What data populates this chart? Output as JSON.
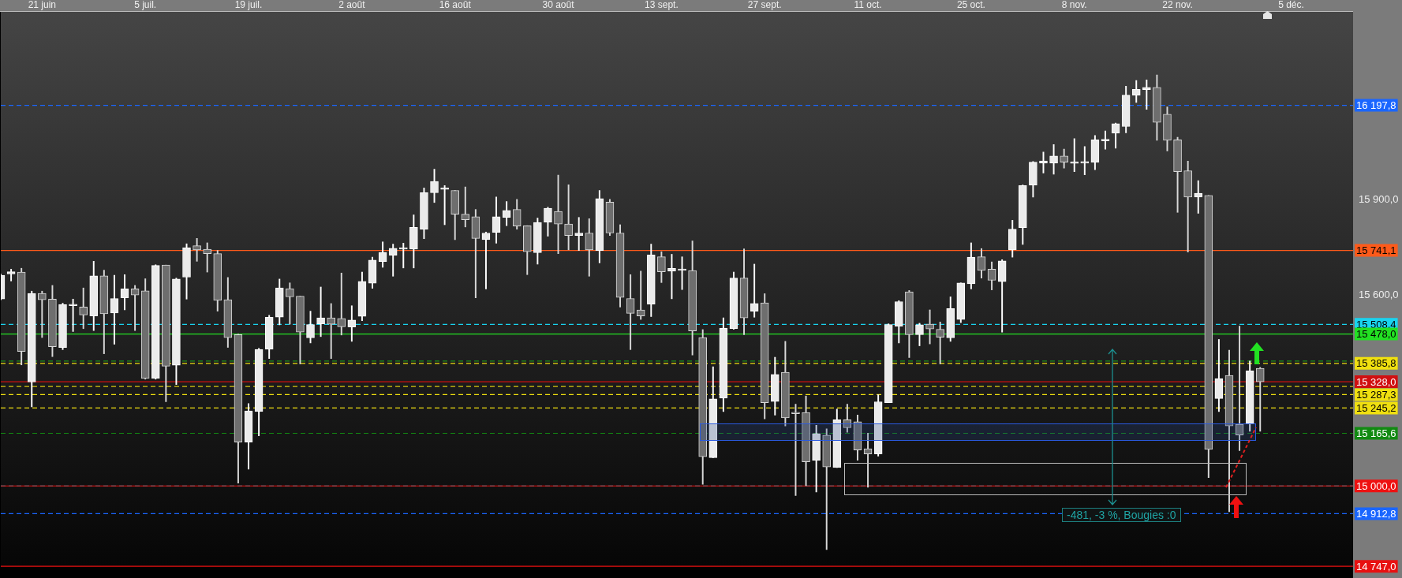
{
  "chart_data": {
    "type": "candlestick",
    "categories": [
      null,
      null,
      null,
      null,
      "21 juin",
      null,
      null,
      null,
      null,
      null,
      null,
      null,
      null,
      null,
      "5 juil.",
      null,
      null,
      null,
      null,
      null,
      null,
      null,
      null,
      null,
      "19 juil.",
      null,
      null,
      null,
      null,
      null,
      null,
      null,
      null,
      null,
      "2 août",
      null,
      null,
      null,
      null,
      null,
      null,
      null,
      null,
      null,
      "16 août",
      null,
      null,
      null,
      null,
      null,
      null,
      null,
      null,
      null,
      "30 août",
      null,
      null,
      null,
      null,
      null,
      null,
      null,
      null,
      null,
      "13 sept.",
      null,
      null,
      null,
      null,
      null,
      null,
      null,
      null,
      null,
      "27 sept.",
      null,
      null,
      null,
      null,
      null,
      null,
      null,
      null,
      null,
      "11 oct.",
      null,
      null,
      null,
      null,
      null,
      null,
      null,
      null,
      null,
      "25 oct.",
      null,
      null,
      null,
      null,
      null,
      null,
      null,
      null,
      null,
      "8 nov.",
      null,
      null,
      null,
      null,
      null,
      null,
      null,
      null,
      null,
      "22 nov.",
      null,
      null,
      null,
      null,
      null,
      null,
      null,
      null,
      null,
      null,
      "5 déc.",
      null,
      null,
      null,
      null,
      null,
      null
    ],
    "ohlc": [
      [
        15588,
        15667,
        15586,
        15663
      ],
      [
        15667,
        15682,
        15645,
        15674
      ],
      [
        15673,
        15685,
        15381,
        15423
      ],
      [
        15327,
        15613,
        15249,
        15606
      ],
      [
        15606,
        15613,
        15467,
        15586
      ],
      [
        15588,
        15631,
        15407,
        15438
      ],
      [
        15436,
        15575,
        15429,
        15571
      ],
      [
        15567,
        15588,
        15486,
        15571
      ],
      [
        15563,
        15623,
        15495,
        15538
      ],
      [
        15535,
        15707,
        15489,
        15661
      ],
      [
        15661,
        15679,
        15416,
        15542
      ],
      [
        15544,
        15663,
        15446,
        15590
      ],
      [
        15592,
        15665,
        15554,
        15620
      ],
      [
        15620,
        15631,
        15489,
        15601
      ],
      [
        15614,
        15652,
        15336,
        15338
      ],
      [
        15338,
        15696,
        15336,
        15694
      ],
      [
        15695,
        15695,
        15265,
        15377
      ],
      [
        15380,
        15654,
        15319,
        15651
      ],
      [
        15657,
        15762,
        15588,
        15750
      ],
      [
        15756,
        15779,
        15707,
        15743
      ],
      [
        15745,
        15765,
        15673,
        15731
      ],
      [
        15731,
        15741,
        15550,
        15584
      ],
      [
        15586,
        15656,
        15436,
        15467
      ],
      [
        15476,
        15478,
        15009,
        15138
      ],
      [
        15138,
        15259,
        15053,
        15236
      ],
      [
        15234,
        15433,
        15158,
        15430
      ],
      [
        15430,
        15537,
        15401,
        15531
      ],
      [
        15531,
        15651,
        15507,
        15623
      ],
      [
        15621,
        15639,
        15509,
        15595
      ],
      [
        15597,
        15597,
        15384,
        15484
      ],
      [
        15466,
        15550,
        15450,
        15508
      ],
      [
        15510,
        15626,
        15470,
        15529
      ],
      [
        15529,
        15574,
        15401,
        15509
      ],
      [
        15527,
        15670,
        15475,
        15501
      ],
      [
        15500,
        15567,
        15455,
        15522
      ],
      [
        15534,
        15673,
        15520,
        15644
      ],
      [
        15638,
        15720,
        15622,
        15711
      ],
      [
        15706,
        15768,
        15688,
        15735
      ],
      [
        15726,
        15761,
        15660,
        15748
      ],
      [
        15745,
        15764,
        15686,
        15750
      ],
      [
        15745,
        15853,
        15686,
        15814
      ],
      [
        15808,
        15938,
        15778,
        15923
      ],
      [
        15923,
        15997,
        15892,
        15958
      ],
      [
        15933,
        15945,
        15822,
        15937
      ],
      [
        15930,
        15930,
        15775,
        15855
      ],
      [
        15855,
        15941,
        15815,
        15838
      ],
      [
        15847,
        15870,
        15592,
        15779
      ],
      [
        15775,
        15799,
        15620,
        15796
      ],
      [
        15798,
        15909,
        15764,
        15847
      ],
      [
        15845,
        15895,
        15819,
        15867
      ],
      [
        15870,
        15902,
        15808,
        15818
      ],
      [
        15819,
        15819,
        15665,
        15737
      ],
      [
        15734,
        15843,
        15698,
        15829
      ],
      [
        15830,
        15877,
        15786,
        15874
      ],
      [
        15864,
        15978,
        15731,
        15824
      ],
      [
        15824,
        15948,
        15743,
        15788
      ],
      [
        15788,
        15845,
        15741,
        15796
      ],
      [
        15796,
        15841,
        15660,
        15743
      ],
      [
        15741,
        15930,
        15702,
        15904
      ],
      [
        15893,
        15902,
        15788,
        15796
      ],
      [
        15796,
        15822,
        15563,
        15593
      ],
      [
        15590,
        15665,
        15429,
        15543
      ],
      [
        15554,
        15676,
        15524,
        15535
      ],
      [
        15572,
        15761,
        15533,
        15727
      ],
      [
        15721,
        15737,
        15640,
        15674
      ],
      [
        15676,
        15729,
        15589,
        15685
      ],
      [
        15678,
        15721,
        15618,
        15681
      ],
      [
        15678,
        15771,
        15412,
        15488
      ],
      [
        15467,
        15492,
        15005,
        15092
      ],
      [
        15089,
        15375,
        15089,
        15274
      ],
      [
        15276,
        15529,
        15234,
        15497
      ],
      [
        15495,
        15673,
        15493,
        15654
      ],
      [
        15654,
        15746,
        15476,
        15529
      ],
      [
        15550,
        15698,
        15531,
        15574
      ],
      [
        15576,
        15605,
        15211,
        15262
      ],
      [
        15266,
        15405,
        15223,
        15351
      ],
      [
        15358,
        15455,
        15189,
        15214
      ],
      [
        15232,
        15257,
        14970,
        15227
      ],
      [
        15231,
        15283,
        15001,
        15076
      ],
      [
        15080,
        15191,
        14981,
        15165
      ],
      [
        15160,
        15180,
        14800,
        15060
      ],
      [
        15058,
        15242,
        15058,
        15208
      ],
      [
        15208,
        15257,
        15169,
        15183
      ],
      [
        15202,
        15223,
        15081,
        15113
      ],
      [
        15117,
        15166,
        14996,
        15101
      ],
      [
        15101,
        15287,
        15094,
        15265
      ],
      [
        15262,
        15510,
        15262,
        15508
      ],
      [
        15503,
        15583,
        15450,
        15580
      ],
      [
        15611,
        15615,
        15404,
        15476
      ],
      [
        15476,
        15512,
        15441,
        15507
      ],
      [
        15509,
        15554,
        15447,
        15494
      ],
      [
        15493,
        15516,
        15384,
        15468
      ],
      [
        15466,
        15595,
        15455,
        15558
      ],
      [
        15524,
        15639,
        15514,
        15639
      ],
      [
        15636,
        15765,
        15620,
        15720
      ],
      [
        15721,
        15747,
        15654,
        15678
      ],
      [
        15682,
        15705,
        15617,
        15647
      ],
      [
        15643,
        15712,
        15484,
        15708
      ],
      [
        15743,
        15836,
        15720,
        15808
      ],
      [
        15813,
        15947,
        15760,
        15945
      ],
      [
        15947,
        16021,
        15909,
        16019
      ],
      [
        16016,
        16051,
        15985,
        16023
      ],
      [
        16016,
        16074,
        15981,
        16038
      ],
      [
        16038,
        16060,
        16000,
        16019
      ],
      [
        16015,
        16093,
        15989,
        16018
      ],
      [
        16016,
        16068,
        15979,
        16018
      ],
      [
        16018,
        16103,
        15995,
        16089
      ],
      [
        16086,
        16117,
        16060,
        16090
      ],
      [
        16110,
        16142,
        16063,
        16140
      ],
      [
        16131,
        16258,
        16111,
        16230
      ],
      [
        16230,
        16276,
        16207,
        16248
      ],
      [
        16247,
        16278,
        16185,
        16254
      ],
      [
        16254,
        16293,
        16088,
        16144
      ],
      [
        16170,
        16193,
        16054,
        16088
      ],
      [
        16089,
        16097,
        15861,
        15989
      ],
      [
        15992,
        16022,
        15736,
        15909
      ],
      [
        15909,
        15961,
        15858,
        15921
      ],
      [
        15914,
        15914,
        15026,
        15115
      ],
      [
        15275,
        15461,
        15234,
        15338
      ],
      [
        15348,
        15427,
        14919,
        15189
      ],
      [
        15194,
        15503,
        15111,
        15160
      ],
      [
        15197,
        15393,
        15172,
        15362
      ],
      [
        15370,
        15373,
        15172,
        15328
      ],
      null,
      null,
      null,
      null,
      null,
      null,
      null,
      null,
      null
    ],
    "ylim": [
      14747,
      16492
    ],
    "yticks": [
      {
        "value": 15600,
        "label": "15 600,0"
      },
      {
        "value": 15900,
        "label": "15 900,0"
      }
    ],
    "ref_lines": [
      {
        "axis": "y",
        "value": 16197.8,
        "label": "16 197,8",
        "color": "#1a66ff",
        "line_style": "dashed"
      },
      {
        "axis": "y",
        "value": 15741.1,
        "label": "15 741,1",
        "color": "#ff5a1a",
        "line_style": "solid"
      },
      {
        "axis": "y",
        "value": 15508.4,
        "label": "15 508,4",
        "color": "#19d4f0",
        "line_style": "dashed"
      },
      {
        "axis": "y",
        "value": 15478.0,
        "label": "15 478,0",
        "color": "#22e022",
        "line_style": "solid"
      },
      {
        "axis": "y",
        "value": 15393,
        "color": "#1a8a1a",
        "line_style": "dashed"
      },
      {
        "axis": "y",
        "value": 15385.8,
        "label": "15 385,8",
        "color": "#f0e010",
        "line_style": "dashed"
      },
      {
        "axis": "y",
        "value": 15328.0,
        "label": "15 328,0",
        "color": "#d01010",
        "line_style": "solid"
      },
      {
        "axis": "y",
        "value": 15313,
        "color": "#d8c810",
        "line_style": "dashed"
      },
      {
        "axis": "y",
        "value": 15287.3,
        "label": "15 287,3",
        "color": "#f0e010",
        "line_style": "dashed"
      },
      {
        "axis": "y",
        "value": 15245.2,
        "label": "15 245,2",
        "color": "#f0e010",
        "line_style": "dashed"
      },
      {
        "axis": "y",
        "value": 15165.6,
        "label": "15 165,6",
        "color": "#128a12",
        "line_style": "dashed"
      },
      {
        "axis": "y",
        "value": 15000,
        "color": "#19d4f0",
        "line_style": "dashed"
      },
      {
        "axis": "y",
        "value": 15000.0,
        "label": "15 000,0",
        "color": "#ee1111",
        "line_style": "solid"
      },
      {
        "axis": "y",
        "value": 14912.8,
        "label": "14 912,8",
        "color": "#1a66ff",
        "line_style": "dashed"
      },
      {
        "axis": "y",
        "value": 14747.0,
        "label": "14 747,0",
        "color": "#e81010",
        "line_style": "solid"
      }
    ],
    "annotations": [
      "-481, -3 %, Bougies :0"
    ]
  }
}
